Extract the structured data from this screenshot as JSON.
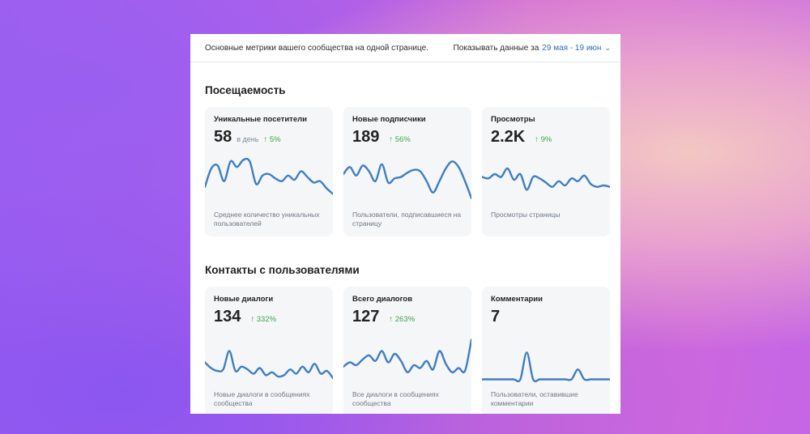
{
  "header": {
    "description": "Основные метрики вашего сообщества на одной странице.",
    "period_label": "Показывать данные за",
    "period_value": "29 мая - 19 июн",
    "period_icon": "chevron-down-icon"
  },
  "sections": [
    {
      "title": "Посещаемость",
      "cards": [
        {
          "title": "Уникальные посетители",
          "value": "58",
          "unit": "в день",
          "trend": "↑ 5%",
          "desc": "Среднее количество уникальных пользователей",
          "line": [
            22,
            48,
            52,
            30,
            58,
            50,
            60,
            58,
            26,
            38,
            40,
            34,
            30,
            38,
            32,
            44,
            36,
            28,
            30,
            20,
            12
          ]
        },
        {
          "title": "Новые подписчики",
          "value": "189",
          "unit": "",
          "trend": "↑ 56%",
          "desc": "Пользователи, подписавшиеся на страницу",
          "line": [
            40,
            50,
            38,
            52,
            44,
            30,
            54,
            28,
            34,
            36,
            42,
            46,
            44,
            30,
            14,
            30,
            48,
            58,
            50,
            30,
            6
          ]
        },
        {
          "title": "Просмотры",
          "value": "2.2K",
          "unit": "",
          "trend": "↑ 9%",
          "desc": "Просмотры страницы",
          "line": [
            36,
            34,
            40,
            36,
            48,
            32,
            40,
            18,
            36,
            34,
            28,
            22,
            30,
            24,
            34,
            30,
            38,
            26,
            22,
            24,
            22
          ]
        }
      ]
    },
    {
      "title": "Контакты с пользователями",
      "cards": [
        {
          "title": "Новые диалоги",
          "value": "134",
          "unit": "",
          "trend": "↑ 332%",
          "desc": "Новые диалоги в сообщениях сообщества",
          "line": [
            28,
            20,
            16,
            18,
            44,
            16,
            22,
            18,
            12,
            20,
            10,
            14,
            8,
            10,
            18,
            12,
            22,
            14,
            26,
            12,
            16,
            6
          ]
        },
        {
          "title": "Всего диалогов",
          "value": "127",
          "unit": "",
          "trend": "↑ 263%",
          "desc": "Все диалоги в сообщениях сообщества",
          "line": [
            22,
            28,
            24,
            32,
            38,
            30,
            44,
            28,
            40,
            30,
            14,
            24,
            20,
            30,
            18,
            44,
            26,
            14,
            20,
            16,
            60
          ]
        },
        {
          "title": "Комментарии",
          "value": "7",
          "unit": "",
          "trend": "",
          "desc": "Пользователи, оставившие комментарии",
          "line": [
            4,
            4,
            4,
            4,
            4,
            4,
            4,
            42,
            4,
            4,
            4,
            4,
            4,
            4,
            4,
            18,
            4,
            4,
            4,
            4,
            4
          ]
        }
      ]
    }
  ]
}
